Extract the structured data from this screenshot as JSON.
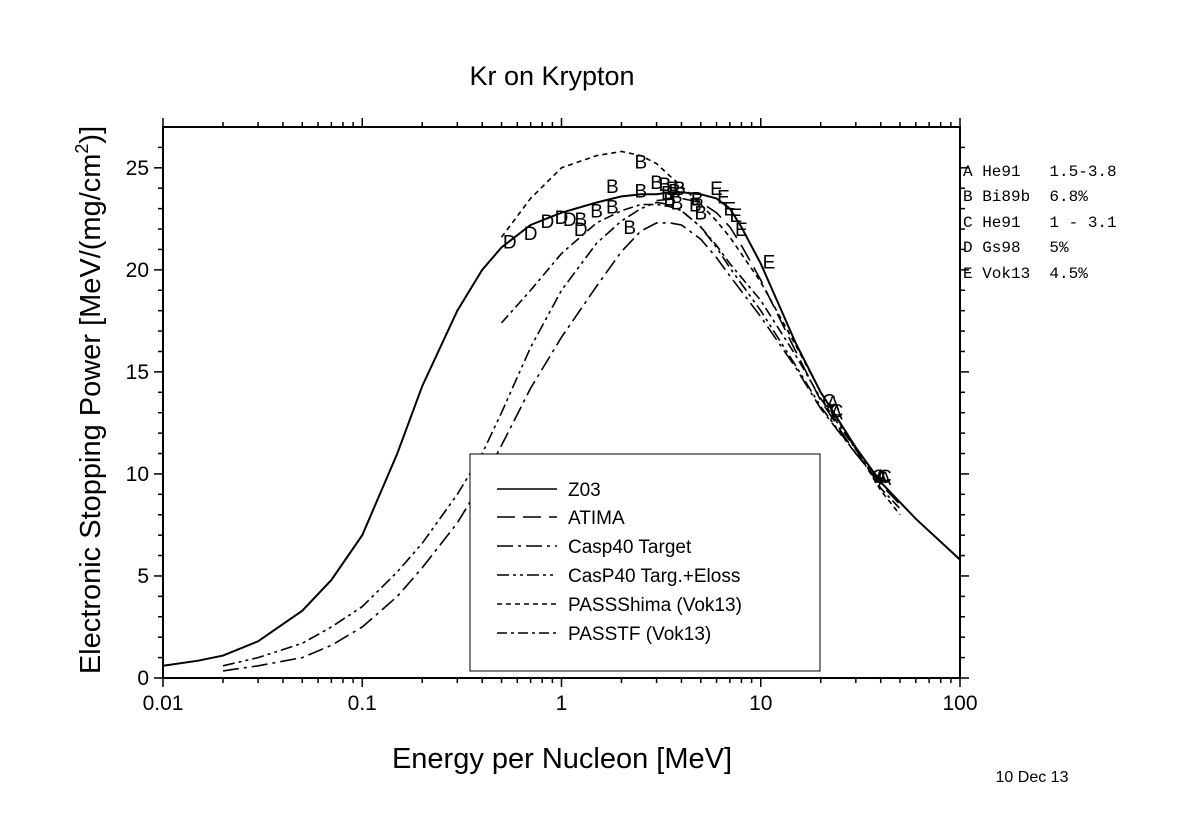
{
  "chart_data": {
    "type": "line",
    "title": "Kr on Krypton",
    "xlabel": "Energy per Nucleon [MeV]",
    "ylabel_main": "Electronic Stopping Power [MeV/(mg/cm",
    "ylabel_sup": "2",
    "ylabel_end": ")]",
    "xscale": "log",
    "xlim": [
      0.01,
      100
    ],
    "ylim": [
      0,
      27
    ],
    "xticks": [
      0.01,
      0.1,
      1,
      10,
      100
    ],
    "xtick_labels": [
      "0.01",
      "0.1",
      "1",
      "10",
      "100"
    ],
    "yticks": [
      0,
      5,
      10,
      15,
      20,
      25
    ],
    "ytick_labels": [
      "0",
      "5",
      "10",
      "15",
      "20",
      "25"
    ],
    "date": "10 Dec 13",
    "legend_placement": "bottom-center",
    "series": [
      {
        "name": "Z03",
        "dash": "solid",
        "x": [
          0.01,
          0.015,
          0.02,
          0.03,
          0.05,
          0.07,
          0.1,
          0.15,
          0.2,
          0.3,
          0.4,
          0.5,
          0.7,
          1.0,
          1.5,
          2.0,
          2.5,
          3.0,
          3.5,
          4.0,
          5.0,
          6.0,
          7.0,
          8.0,
          10.0,
          15.0,
          20.0,
          30.0,
          40.0,
          60.0,
          100.0
        ],
        "y": [
          0.6,
          0.85,
          1.1,
          1.8,
          3.3,
          4.8,
          7.0,
          11.0,
          14.3,
          18.0,
          20.0,
          21.1,
          22.2,
          22.8,
          23.3,
          23.6,
          23.7,
          23.7,
          23.8,
          23.8,
          23.7,
          23.5,
          23.0,
          22.1,
          20.3,
          16.4,
          14.0,
          11.3,
          9.6,
          7.8,
          5.8
        ]
      },
      {
        "name": "ATIMA",
        "dash": "18,8",
        "x": [
          3.0,
          4.0,
          5.0,
          6.0,
          7.0,
          8.0,
          10.0,
          15.0,
          20.0,
          30.0,
          40.0,
          50.0
        ],
        "y": [
          23.4,
          23.5,
          23.3,
          22.8,
          22.1,
          21.2,
          19.5,
          16.0,
          13.6,
          11.0,
          9.5,
          8.5
        ]
      },
      {
        "name": "Casp40 Target",
        "dash": "16,5,3,5",
        "x": [
          0.02,
          0.03,
          0.05,
          0.07,
          0.1,
          0.15,
          0.2,
          0.3,
          0.4,
          0.5,
          0.7,
          1.0,
          1.5,
          2.0,
          2.5,
          3.0,
          3.5,
          4.0,
          5.0,
          6.0,
          7.0,
          10.0,
          15.0,
          20.0,
          30.0,
          40.0
        ],
        "y": [
          0.35,
          0.6,
          1.0,
          1.6,
          2.5,
          4.0,
          5.4,
          7.6,
          9.6,
          11.4,
          14.2,
          16.7,
          19.2,
          20.9,
          21.9,
          22.3,
          22.3,
          22.2,
          21.5,
          20.6,
          19.7,
          17.7,
          15.2,
          13.2,
          11.0,
          9.7
        ]
      },
      {
        "name": "CasP40 Targ.+Eloss",
        "dash": "12,4,3,4,3,4",
        "x": [
          0.02,
          0.03,
          0.05,
          0.07,
          0.1,
          0.15,
          0.2,
          0.3,
          0.4,
          0.5,
          0.7,
          1.0,
          1.5,
          2.0,
          2.5,
          3.0,
          3.5,
          4.0,
          5.0,
          6.0,
          7.0,
          10.0,
          15.0,
          20.0,
          30.0,
          40.0
        ],
        "y": [
          0.6,
          1.0,
          1.7,
          2.5,
          3.5,
          5.2,
          6.6,
          9.0,
          11.0,
          13.0,
          16.2,
          19.0,
          21.3,
          22.4,
          23.0,
          23.3,
          23.2,
          22.9,
          22.1,
          21.1,
          20.1,
          18.0,
          15.3,
          13.3,
          11.0,
          9.7
        ]
      },
      {
        "name": "PASSShima (Vok13)",
        "dash": "5,4",
        "x": [
          0.5,
          0.7,
          1.0,
          1.5,
          2.0,
          2.5,
          3.0,
          3.5,
          4.0,
          5.0,
          6.0,
          7.0,
          10.0,
          15.0,
          20.0,
          30.0,
          40.0,
          50.0
        ],
        "y": [
          21.6,
          23.5,
          25.0,
          25.6,
          25.8,
          25.6,
          25.2,
          24.6,
          24.1,
          23.2,
          22.4,
          21.6,
          19.4,
          16.3,
          14.0,
          11.2,
          9.2,
          8.0
        ]
      },
      {
        "name": "PASSTF (Vok13)",
        "dash": "10,4,3,4",
        "x": [
          0.5,
          0.7,
          1.0,
          1.5,
          2.0,
          2.5,
          3.0,
          3.5,
          4.0,
          5.0,
          6.0,
          7.0,
          10.0,
          15.0,
          20.0,
          30.0,
          40.0,
          50.0
        ],
        "y": [
          17.4,
          19.0,
          20.8,
          22.3,
          22.9,
          23.2,
          23.2,
          23.1,
          22.9,
          22.1,
          21.2,
          20.3,
          18.5,
          15.8,
          13.7,
          11.2,
          9.3,
          8.3
        ]
      }
    ],
    "markers": [
      {
        "label": "A",
        "x": 23,
        "y": 13.5
      },
      {
        "label": "A",
        "x": 24,
        "y": 13.0
      },
      {
        "label": "A",
        "x": 40,
        "y": 9.9
      },
      {
        "label": "A",
        "x": 42,
        "y": 9.8
      },
      {
        "label": "C",
        "x": 22,
        "y": 13.6
      },
      {
        "label": "C",
        "x": 24,
        "y": 13.1
      },
      {
        "label": "C",
        "x": 39,
        "y": 9.9
      },
      {
        "label": "C",
        "x": 42,
        "y": 9.9
      },
      {
        "label": "B",
        "x": 1.25,
        "y": 22.5
      },
      {
        "label": "B",
        "x": 1.5,
        "y": 22.9
      },
      {
        "label": "B",
        "x": 1.8,
        "y": 23.1
      },
      {
        "label": "B",
        "x": 1.8,
        "y": 24.1
      },
      {
        "label": "B",
        "x": 2.5,
        "y": 23.9
      },
      {
        "label": "B",
        "x": 2.5,
        "y": 25.3
      },
      {
        "label": "B",
        "x": 2.2,
        "y": 22.1
      },
      {
        "label": "B",
        "x": 3.0,
        "y": 24.3
      },
      {
        "label": "B",
        "x": 3.3,
        "y": 24.2
      },
      {
        "label": "B",
        "x": 3.4,
        "y": 23.8
      },
      {
        "label": "B",
        "x": 3.5,
        "y": 23.5
      },
      {
        "label": "B",
        "x": 3.6,
        "y": 24.0
      },
      {
        "label": "B",
        "x": 3.7,
        "y": 23.9
      },
      {
        "label": "B",
        "x": 3.9,
        "y": 24.0
      },
      {
        "label": "B",
        "x": 3.8,
        "y": 23.3
      },
      {
        "label": "B",
        "x": 4.7,
        "y": 23.2
      },
      {
        "label": "B",
        "x": 4.8,
        "y": 23.5
      },
      {
        "label": "B",
        "x": 5.0,
        "y": 22.8
      },
      {
        "label": "D",
        "x": 0.55,
        "y": 21.4
      },
      {
        "label": "D",
        "x": 0.7,
        "y": 21.8
      },
      {
        "label": "D",
        "x": 0.85,
        "y": 22.4
      },
      {
        "label": "D",
        "x": 1.0,
        "y": 22.6
      },
      {
        "label": "D",
        "x": 1.1,
        "y": 22.5
      },
      {
        "label": "D",
        "x": 1.25,
        "y": 22.0
      },
      {
        "label": "E",
        "x": 6.0,
        "y": 24.0
      },
      {
        "label": "E",
        "x": 6.5,
        "y": 23.6
      },
      {
        "label": "E",
        "x": 7.0,
        "y": 23.0
      },
      {
        "label": "E",
        "x": 7.5,
        "y": 22.7
      },
      {
        "label": "E",
        "x": 8.0,
        "y": 22.0
      },
      {
        "label": "E",
        "x": 11.0,
        "y": 20.4
      }
    ],
    "side_legend": [
      "A He91   1.5-3.8",
      "B Bi89b  6.8%",
      "C He91   1 - 3.1",
      "D Gs98   5%",
      "E Vok13  4.5%"
    ]
  }
}
